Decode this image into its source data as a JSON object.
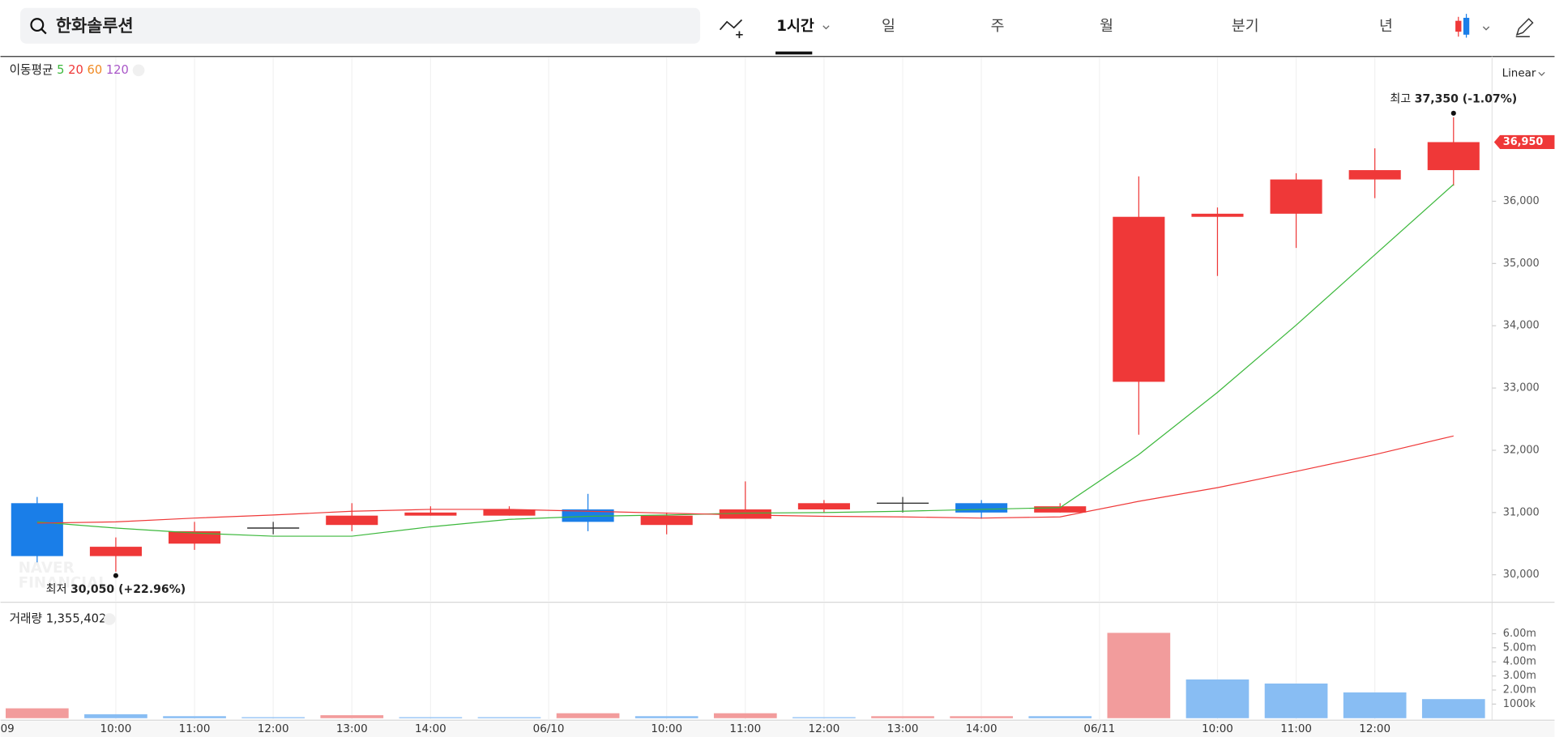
{
  "search": {
    "query": "한화솔루션"
  },
  "tabs": [
    "1시간",
    "일",
    "주",
    "월",
    "분기",
    "년"
  ],
  "chart_data": [
    {
      "type": "candlestick",
      "scale": "Linear",
      "xlim": [
        -0.466,
        18.49
      ],
      "xticks": [
        {
          "value": -0.5,
          "label": "09"
        },
        {
          "value": 1,
          "label": "10:00"
        },
        {
          "value": 2,
          "label": "11:00"
        },
        {
          "value": 3,
          "label": "12:00"
        },
        {
          "value": 4,
          "label": "13:00"
        },
        {
          "value": 5,
          "label": "14:00"
        },
        {
          "value": 6.5,
          "label": "06/10"
        },
        {
          "value": 8,
          "label": "10:00"
        },
        {
          "value": 9,
          "label": "11:00"
        },
        {
          "value": 10,
          "label": "12:00"
        },
        {
          "value": 11,
          "label": "13:00"
        },
        {
          "value": 12,
          "label": "14:00"
        },
        {
          "value": 13.5,
          "label": "06/11"
        },
        {
          "value": 15,
          "label": "10:00"
        },
        {
          "value": 16,
          "label": "11:00"
        },
        {
          "value": 17,
          "label": "12:00"
        }
      ],
      "ylim": [
        29590,
        38310
      ],
      "yticks": [
        {
          "value": 30000,
          "label": "30,000"
        },
        {
          "value": 31000,
          "label": "31,000"
        },
        {
          "value": 32000,
          "label": "32,000"
        },
        {
          "value": 33000,
          "label": "33,000"
        },
        {
          "value": 34000,
          "label": "34,000"
        },
        {
          "value": 35000,
          "label": "35,000"
        },
        {
          "value": 36000,
          "label": "36,000"
        }
      ],
      "grid": true,
      "open": [
        31150,
        30300,
        30500,
        30750,
        30800,
        30950,
        30950,
        31050,
        30800,
        30900,
        31050,
        31150,
        31150,
        31000,
        33100,
        35750,
        35800,
        36350,
        36500
      ],
      "high": [
        31250,
        30600,
        30850,
        30850,
        31150,
        31100,
        31100,
        31300,
        31000,
        31500,
        31200,
        31250,
        31200,
        31150,
        36400,
        35900,
        36450,
        36850,
        37350
      ],
      "low": [
        30200,
        30050,
        30400,
        30650,
        30700,
        30950,
        30950,
        30700,
        30650,
        30900,
        31000,
        31000,
        30900,
        31000,
        32250,
        34800,
        35250,
        36050,
        36250
      ],
      "close": [
        30300,
        30450,
        30700,
        30750,
        30950,
        31000,
        31050,
        30850,
        30950,
        31050,
        31150,
        31150,
        31000,
        31100,
        35750,
        35800,
        36350,
        36500,
        36950
      ],
      "up_color": "#ef3838",
      "down_color": "#1a7ee8",
      "doji_color": "#333333",
      "moving_average": {
        "title": "이동평균",
        "series": [
          {
            "name": "5",
            "color": "#3cb83c",
            "values": [
              30850,
              30750,
              30670,
              30620,
              30620,
              30770,
              30890,
              30940,
              30960,
              30990,
              31000,
              31020,
              31050,
              31080,
              31930,
              32930,
              34010,
              35140,
              36270
            ]
          },
          {
            "name": "20",
            "color": "#ef3838",
            "values": [
              30830,
              30850,
              30910,
              30960,
              31020,
              31050,
              31050,
              31020,
              30990,
              30960,
              30940,
              30930,
              30910,
              30930,
              31180,
              31400,
              31660,
              31930,
              32230
            ]
          },
          {
            "name": "60",
            "color": "#f08a24",
            "values": [
              null,
              null,
              null,
              null,
              null,
              null,
              null,
              null,
              null,
              null,
              null,
              null,
              null,
              null,
              null,
              null,
              null,
              null,
              null
            ]
          },
          {
            "name": "120",
            "color": "#a957c8",
            "values": [
              null,
              null,
              null,
              null,
              null,
              null,
              null,
              null,
              null,
              null,
              null,
              null,
              null,
              null,
              null,
              null,
              null,
              null,
              null
            ]
          }
        ]
      },
      "annotations": {
        "high": {
          "prefix": "최고",
          "text": "37,350 (-1.07%)"
        },
        "low": {
          "prefix": "최저",
          "text": "30,050 (+22.96%)"
        }
      },
      "current_price": {
        "value": 36950,
        "label": "36,950"
      },
      "watermark": [
        "NAVER",
        "FINANCIAL"
      ]
    },
    {
      "type": "bar",
      "title": "거래량",
      "last_value": "1,355,402",
      "ylim": [
        0,
        7950000
      ],
      "yticks": [
        {
          "value": 1000000,
          "label": "1000k"
        },
        {
          "value": 2000000,
          "label": "2.00m"
        },
        {
          "value": 3000000,
          "label": "3.00m"
        },
        {
          "value": 4000000,
          "label": "4.00m"
        },
        {
          "value": 5000000,
          "label": "5.00m"
        },
        {
          "value": 6000000,
          "label": "6.00m"
        }
      ],
      "values": [
        700000,
        280000,
        140000,
        70000,
        210000,
        70000,
        70000,
        350000,
        140000,
        350000,
        70000,
        140000,
        140000,
        140000,
        6060000,
        2750000,
        2460000,
        1830000,
        1355402
      ],
      "colors": [
        "#f29c9c",
        "#88bdf3",
        "#88bdf3",
        "#88bdf3",
        "#f29c9c",
        "#88bdf3",
        "#88bdf3",
        "#f29c9c",
        "#88bdf3",
        "#f29c9c",
        "#88bdf3",
        "#f29c9c",
        "#f29c9c",
        "#88bdf3",
        "#f29c9c",
        "#88bdf3",
        "#88bdf3",
        "#88bdf3",
        "#88bdf3"
      ]
    }
  ]
}
